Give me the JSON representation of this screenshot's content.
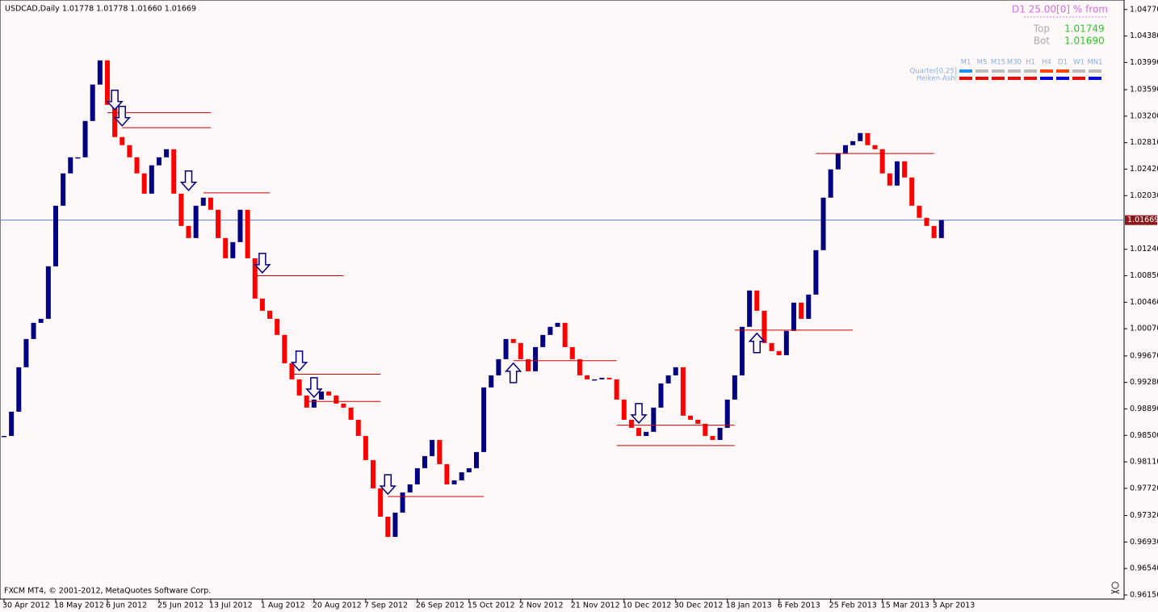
{
  "header": "USDCAD,Daily  1.01778 1.01778 1.01660 1.01669",
  "footer": "FXCM MT4, © 2001-2012, MetaQuotes Software Corp.",
  "info_panel": {
    "title": "D1 25.00[0] % from",
    "rows": [
      [
        "Top",
        "1.01749"
      ],
      [
        "Bot",
        "1.01690"
      ]
    ]
  },
  "status_panel": {
    "timeframes": [
      "M1",
      "M5",
      "M15",
      "M30",
      "H1",
      "H4",
      "D1",
      "W1",
      "MN1"
    ],
    "rows": [
      {
        "name": "Quarter[0.25]",
        "colors": [
          "#1e90ff",
          "#bbbbbb",
          "#bbbbbb",
          "#bbbbbb",
          "#bbbbbb",
          "#ff4500",
          "#ff4500",
          "#bbbbbb",
          "#bbbbbb"
        ]
      },
      {
        "name": "Heiken-Ashi",
        "colors": [
          "#ff0000",
          "#ff0000",
          "#ff0000",
          "#ff0000",
          "#ff0000",
          "#0000ff",
          "#0000ff",
          "#ff0000",
          "#0000ff"
        ]
      }
    ]
  },
  "chart_data": {
    "type": "candlestick",
    "up_color": "#000080",
    "down_color": "#ff0000",
    "categories": [
      "30 Apr 2012",
      null,
      null,
      null,
      null,
      null,
      null,
      "18 May 2012",
      null,
      null,
      null,
      null,
      null,
      null,
      "6 Jun 2012",
      null,
      null,
      null,
      null,
      null,
      null,
      "25 Jun 2012",
      null,
      null,
      null,
      null,
      null,
      null,
      "13 Jul 2012",
      null,
      null,
      null,
      null,
      null,
      null,
      "1 Aug 2012",
      null,
      null,
      null,
      null,
      null,
      null,
      "20 Aug 2012",
      null,
      null,
      null,
      null,
      null,
      null,
      "7 Sep 2012",
      null,
      null,
      null,
      null,
      null,
      null,
      "26 Sep 2012",
      null,
      null,
      null,
      null,
      null,
      null,
      "15 Oct 2012",
      null,
      null,
      null,
      null,
      null,
      null,
      "2 Nov 2012",
      null,
      null,
      null,
      null,
      null,
      null,
      "21 Nov 2012",
      null,
      null,
      null,
      null,
      null,
      null,
      "10 Dec 2012",
      null,
      null,
      null,
      null,
      null,
      null,
      "30 Dec 2012",
      null,
      null,
      null,
      null,
      null,
      null,
      "18 Jan 2013",
      null,
      null,
      null,
      null,
      null,
      null,
      "6 Feb 2013",
      null,
      null,
      null,
      null,
      null,
      null,
      "25 Feb 2013",
      null,
      null,
      null,
      null,
      null,
      null,
      "15 Mar 2013",
      null,
      null,
      null,
      null,
      null,
      null,
      "3 Apr 2013",
      null
    ],
    "values": [
      0.98492,
      0.98849,
      0.99503,
      0.99919,
      1.00157,
      1.00216,
      1.00989,
      1.01881,
      1.02357,
      1.02594,
      1.02594,
      1.03129,
      1.03665,
      1.04021,
      1.03367,
      1.02892,
      1.02773,
      1.02594,
      1.02357,
      1.02059,
      1.02476,
      1.02594,
      1.02713,
      1.02059,
      1.01584,
      1.01405,
      1.01881,
      1.02,
      1.01822,
      1.01405,
      1.01108,
      1.01346,
      1.01822,
      1.01108,
      1.00514,
      1.00335,
      1.00216,
      0.99979,
      0.99562,
      0.99325,
      0.99087,
      0.98909,
      0.99027,
      0.99146,
      0.99087,
      0.98968,
      0.98909,
      0.9873,
      0.98492,
      0.98136,
      0.9772,
      0.97303,
      0.97006,
      0.97363,
      0.9766,
      0.97779,
      0.98017,
      0.98195,
      0.98433,
      0.98076,
      0.97779,
      0.97838,
      0.97957,
      0.98017,
      0.98255,
      0.99206,
      0.99384,
      0.99622,
      0.99919,
      0.9986,
      0.99622,
      0.99444,
      0.998,
      0.99979,
      1.00098,
      1.00157,
      0.998,
      0.99622,
      0.99384,
      0.99325,
      0.99325,
      0.99348,
      0.99325,
      0.99027,
      0.9873,
      0.98611,
      0.98492,
      0.98552,
      0.98909,
      0.99265,
      0.99384,
      0.99503,
      0.9879,
      0.9873,
      0.98671,
      0.98492,
      0.98433,
      0.98611,
      0.99027,
      0.99384,
      1.00098,
      1.00633,
      1.00335,
      0.9986,
      0.99741,
      0.99681,
      1.00038,
      1.00454,
      1.00216,
      1.00573,
      1.01227,
      1.02,
      1.02416,
      1.02654,
      1.02773,
      1.02832,
      1.02951,
      1.02773,
      1.02713,
      1.02357,
      1.02178,
      1.02535,
      1.02297,
      1.01881,
      1.01703,
      1.01584,
      1.01405,
      1.01669
    ],
    "ylim": [
      0.9609,
      1.0491
    ],
    "yticks": [
      {
        "value": 1.0477,
        "label": "1.04770"
      },
      {
        "value": 1.0438,
        "label": "1.04380"
      },
      {
        "value": 1.0399,
        "label": "1.03990"
      },
      {
        "value": 1.0359,
        "label": "1.03590"
      },
      {
        "value": 1.032,
        "label": "1.03200"
      },
      {
        "value": 1.0281,
        "label": "1.02810"
      },
      {
        "value": 1.0242,
        "label": "1.02420"
      },
      {
        "value": 1.0203,
        "label": "1.02030"
      },
      {
        "value": 1.0124,
        "label": "1.01240"
      },
      {
        "value": 1.0085,
        "label": "1.00850"
      },
      {
        "value": 1.0046,
        "label": "1.00460"
      },
      {
        "value": 1.0007,
        "label": "1.00070"
      },
      {
        "value": 0.9967,
        "label": "0.99670"
      },
      {
        "value": 0.9928,
        "label": "0.99280"
      },
      {
        "value": 0.9889,
        "label": "0.98890"
      },
      {
        "value": 0.985,
        "label": "0.98500"
      },
      {
        "value": 0.9811,
        "label": "0.98110"
      },
      {
        "value": 0.9772,
        "label": "0.97720"
      },
      {
        "value": 0.9732,
        "label": "0.97320"
      },
      {
        "value": 0.9693,
        "label": "0.96930"
      },
      {
        "value": 0.9654,
        "label": "0.96540"
      },
      {
        "value": 0.9615,
        "label": "0.96150"
      }
    ],
    "current_price": 1.01669,
    "levels": [
      {
        "price": 1.0325,
        "start": 14,
        "end": 28
      },
      {
        "price": 1.0303,
        "start": 16,
        "end": 28
      },
      {
        "price": 1.0207,
        "start": 27,
        "end": 36
      },
      {
        "price": 1.0085,
        "start": 34,
        "end": 46
      },
      {
        "price": 0.994,
        "start": 39,
        "end": 51
      },
      {
        "price": 0.99,
        "start": 41,
        "end": 51
      },
      {
        "price": 0.976,
        "start": 52,
        "end": 65
      },
      {
        "price": 0.996,
        "start": 69,
        "end": 83
      },
      {
        "price": 0.9865,
        "start": 83,
        "end": 99
      },
      {
        "price": 0.9835,
        "start": 83,
        "end": 99
      },
      {
        "price": 1.0005,
        "start": 99,
        "end": 115
      },
      {
        "price": 1.0265,
        "start": 110,
        "end": 126
      }
    ],
    "arrows": [
      {
        "dir": "down",
        "x": 15,
        "price": 1.03296
      },
      {
        "dir": "down",
        "x": 16,
        "price": 1.03058
      },
      {
        "dir": "down",
        "x": 25,
        "price": 1.02107
      },
      {
        "dir": "down",
        "x": 35,
        "price": 1.00894
      },
      {
        "dir": "down",
        "x": 40,
        "price": 0.99456
      },
      {
        "dir": "down",
        "x": 42,
        "price": 0.99063
      },
      {
        "dir": "down",
        "x": 52,
        "price": 0.97636
      },
      {
        "dir": "down",
        "x": 86,
        "price": 0.98683
      },
      {
        "dir": "up",
        "x": 69,
        "price": 0.99563
      },
      {
        "dir": "up",
        "x": 102,
        "price": 1.00003
      }
    ]
  }
}
